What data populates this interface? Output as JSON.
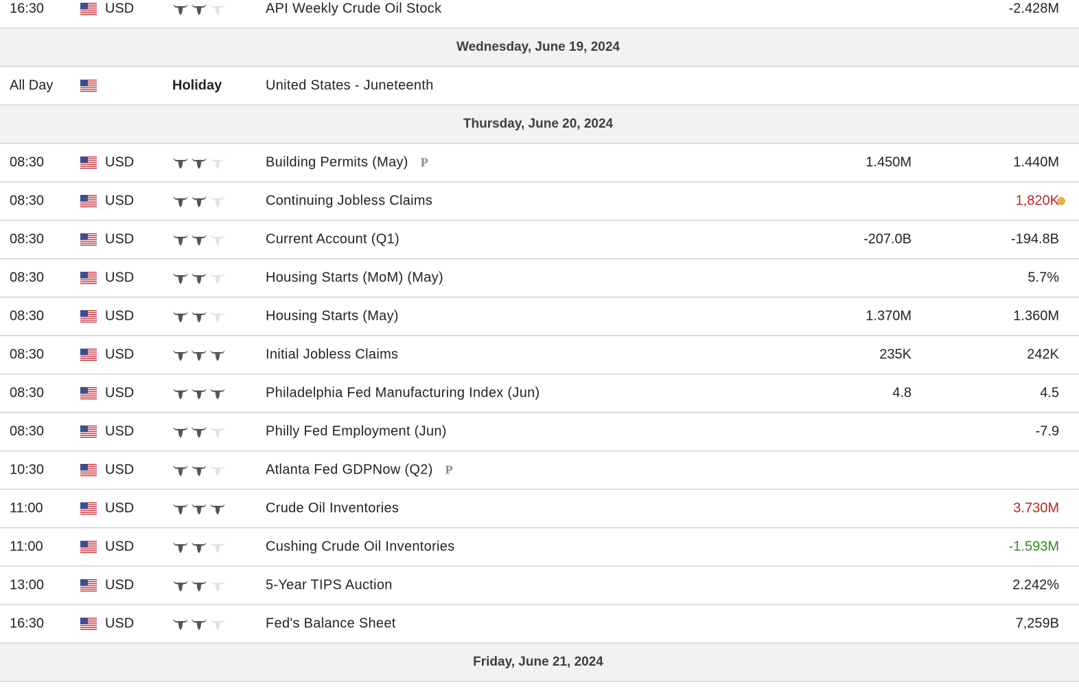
{
  "rows": [
    {
      "time": "16:30",
      "currency": "USD",
      "importance": 2,
      "event": "API Weekly Crude Oil Stock",
      "previous": "-2.428M"
    },
    {
      "date": "Wednesday, June 19, 2024"
    },
    {
      "time": "All Day",
      "label": "Holiday",
      "event": "United States - Juneteenth"
    },
    {
      "date": "Thursday, June 20, 2024"
    },
    {
      "time": "08:30",
      "currency": "USD",
      "importance": 2,
      "event": "Building Permits (May)",
      "preliminary": "P",
      "forecast": "1.450M",
      "previous": "1.440M"
    },
    {
      "time": "08:30",
      "currency": "USD",
      "importance": 2,
      "event": "Continuing Jobless Claims",
      "previous": "1,820K",
      "previous_color": "#b8271d",
      "revised": true
    },
    {
      "time": "08:30",
      "currency": "USD",
      "importance": 2,
      "event": "Current Account (Q1)",
      "forecast": "-207.0B",
      "previous": "-194.8B"
    },
    {
      "time": "08:30",
      "currency": "USD",
      "importance": 2,
      "event": "Housing Starts (MoM) (May)",
      "previous": "5.7%"
    },
    {
      "time": "08:30",
      "currency": "USD",
      "importance": 2,
      "event": "Housing Starts (May)",
      "forecast": "1.370M",
      "previous": "1.360M"
    },
    {
      "time": "08:30",
      "currency": "USD",
      "importance": 3,
      "event": "Initial Jobless Claims",
      "forecast": "235K",
      "previous": "242K"
    },
    {
      "time": "08:30",
      "currency": "USD",
      "importance": 3,
      "event": "Philadelphia Fed Manufacturing Index (Jun)",
      "forecast": "4.8",
      "previous": "4.5"
    },
    {
      "time": "08:30",
      "currency": "USD",
      "importance": 2,
      "event": "Philly Fed Employment (Jun)",
      "previous": "-7.9"
    },
    {
      "time": "10:30",
      "currency": "USD",
      "importance": 2,
      "event": "Atlanta Fed GDPNow (Q2)",
      "preliminary": "P"
    },
    {
      "time": "11:00",
      "currency": "USD",
      "importance": 3,
      "event": "Crude Oil Inventories",
      "previous": "3.730M",
      "previous_color": "#b8271d"
    },
    {
      "time": "11:00",
      "currency": "USD",
      "importance": 2,
      "event": "Cushing Crude Oil Inventories",
      "previous": "-1.593M",
      "previous_color": "#2f8a25"
    },
    {
      "time": "13:00",
      "currency": "USD",
      "importance": 2,
      "event": "5-Year TIPS Auction",
      "previous": "2.242%"
    },
    {
      "time": "16:30",
      "currency": "USD",
      "importance": 2,
      "event": "Fed's Balance Sheet",
      "previous": "7,259B"
    },
    {
      "date": "Friday, June 21, 2024"
    }
  ]
}
